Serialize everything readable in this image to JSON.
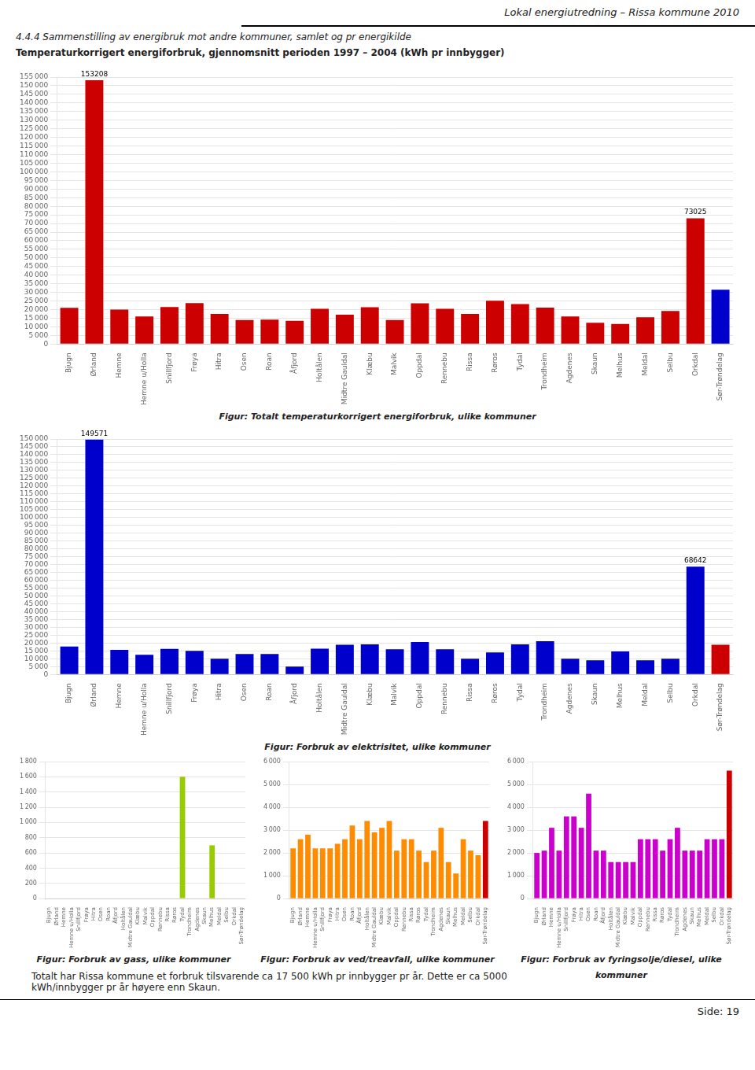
{
  "header": "Lokal energiutredning – Rissa kommune 2010",
  "section_title": "4.4.4   Sammenstilling av energibruk mot andre kommuner, samlet og pr energikilde",
  "subtitle": "Temperaturkorrigert energiforbruk, gjennomsnitt perioden 1997 – 2004 (kWh pr innbygger)",
  "text": [
    "Totalt har Rissa kommune et forbruk tilsvarende ca 17 500 kWh pr innbygger pr år. Dette er ca 5000",
    "kWh/innbygger pr år høyere enn Skaun."
  ],
  "footer": "Side: 19",
  "chart_data": [
    {
      "type": "bar",
      "title": "Figur: Totalt temperaturkorrigert energiforbruk, ulike kommuner",
      "categories": [
        "Bjugn",
        "Ørland",
        "Hemne",
        "Hemne u/Holla",
        "Snillfjord",
        "Frøya",
        "Hitra",
        "Osen",
        "Roan",
        "Åfjord",
        "Holtålen",
        "Midtre Gauldal",
        "Klæbu",
        "Malvik",
        "Oppdal",
        "Rennebu",
        "Rissa",
        "Røros",
        "Tydal",
        "Trondheim",
        "Agdenes",
        "Skaun",
        "Melhus",
        "Meldal",
        "Selbu",
        "Orkdal",
        "Sør-Trøndelag"
      ],
      "values": [
        21000,
        153208,
        20000,
        16000,
        21500,
        23800,
        17500,
        14000,
        14200,
        13500,
        20500,
        17000,
        21400,
        14000,
        23700,
        20500,
        17500,
        25200,
        23200,
        21200,
        16000,
        12400,
        11700,
        15500,
        19200,
        73025,
        31500
      ],
      "colors": [
        "#CC0000",
        "#CC0000",
        "#CC0000",
        "#CC0000",
        "#CC0000",
        "#CC0000",
        "#CC0000",
        "#CC0000",
        "#CC0000",
        "#CC0000",
        "#CC0000",
        "#CC0000",
        "#CC0000",
        "#CC0000",
        "#CC0000",
        "#CC0000",
        "#CC0000",
        "#CC0000",
        "#CC0000",
        "#CC0000",
        "#CC0000",
        "#CC0000",
        "#CC0000",
        "#CC0000",
        "#CC0000",
        "#CC0000",
        "#0000CC"
      ],
      "ylim": [
        0,
        155000
      ],
      "yticks": [
        0,
        {
          "value": 5000,
          "label": "5 000"
        },
        {
          "value": 10000,
          "label": "10 000"
        },
        {
          "value": 15000,
          "label": "15 000"
        },
        {
          "value": 20000,
          "label": "20 000"
        },
        {
          "value": 25000,
          "label": "25 000"
        },
        {
          "value": 30000,
          "label": "30 000"
        },
        {
          "value": 35000,
          "label": "35 000"
        },
        {
          "value": 40000,
          "label": "40 000"
        },
        {
          "value": 45000,
          "label": "45 000"
        },
        {
          "value": 50000,
          "label": "50 000"
        },
        {
          "value": 55000,
          "label": "55 000"
        },
        {
          "value": 60000,
          "label": "60 000"
        },
        {
          "value": 65000,
          "label": "65 000"
        },
        {
          "value": 70000,
          "label": "70 000"
        },
        {
          "value": 75000,
          "label": "75 000"
        },
        {
          "value": 80000,
          "label": "80 000"
        },
        {
          "value": 85000,
          "label": "85 000"
        },
        {
          "value": 90000,
          "label": "90 000"
        },
        {
          "value": 95000,
          "label": "95 000"
        },
        {
          "value": 100000,
          "label": "100 000"
        },
        {
          "value": 105000,
          "label": "105 000"
        },
        {
          "value": 110000,
          "label": "110 000"
        },
        {
          "value": 115000,
          "label": "115 000"
        },
        {
          "value": 120000,
          "label": "120 000"
        },
        {
          "value": 125000,
          "label": "125 000"
        },
        {
          "value": 130000,
          "label": "130 000"
        },
        {
          "value": 135000,
          "label": "135 000"
        },
        {
          "value": 140000,
          "label": "140 000"
        },
        {
          "value": 145000,
          "label": "145 000"
        },
        {
          "value": 150000,
          "label": "150 000"
        },
        {
          "value": 155000,
          "label": "155 000"
        }
      ],
      "grid": true,
      "annotations": [
        {
          "category": "Ørland",
          "text": "153208"
        },
        {
          "category": "Orkdal",
          "text": "73025"
        }
      ]
    },
    {
      "type": "bar",
      "title": "Figur: Forbruk av elektrisitet, ulike kommuner",
      "categories": [
        "Bjugn",
        "Ørland",
        "Hemne",
        "Hemne u/Holla",
        "Snillfjord",
        "Frøya",
        "Hitra",
        "Osen",
        "Roan",
        "Åfjord",
        "Holtålen",
        "Midtre Gauldal",
        "Klæbu",
        "Malvik",
        "Oppdal",
        "Rennebu",
        "Rissa",
        "Røros",
        "Tydal",
        "Trondheim",
        "Agdenes",
        "Skaun",
        "Melhus",
        "Meldal",
        "Selbu",
        "Orkdal",
        "Sør-Trøndelag"
      ],
      "values": [
        17800,
        149571,
        15700,
        12500,
        16300,
        15000,
        10000,
        13000,
        13000,
        5000,
        16400,
        19000,
        19200,
        16000,
        20700,
        16000,
        10000,
        14000,
        19200,
        21200,
        10000,
        9000,
        14700,
        9000,
        10000,
        68642,
        19000
      ],
      "colors": [
        "#0000CC",
        "#0000CC",
        "#0000CC",
        "#0000CC",
        "#0000CC",
        "#0000CC",
        "#0000CC",
        "#0000CC",
        "#0000CC",
        "#0000CC",
        "#0000CC",
        "#0000CC",
        "#0000CC",
        "#0000CC",
        "#0000CC",
        "#0000CC",
        "#0000CC",
        "#0000CC",
        "#0000CC",
        "#0000CC",
        "#0000CC",
        "#0000CC",
        "#0000CC",
        "#0000CC",
        "#0000CC",
        "#0000CC",
        "#CC0000"
      ],
      "ylim": [
        0,
        150000
      ],
      "yticks": [
        0,
        {
          "value": 5000,
          "label": "5 000"
        },
        {
          "value": 10000,
          "label": "10 000"
        },
        {
          "value": 15000,
          "label": "15 000"
        },
        {
          "value": 20000,
          "label": "20 000"
        },
        {
          "value": 25000,
          "label": "25 000"
        },
        {
          "value": 30000,
          "label": "30 000"
        },
        {
          "value": 35000,
          "label": "35 000"
        },
        {
          "value": 40000,
          "label": "40 000"
        },
        {
          "value": 45000,
          "label": "45 000"
        },
        {
          "value": 50000,
          "label": "50 000"
        },
        {
          "value": 55000,
          "label": "55 000"
        },
        {
          "value": 60000,
          "label": "60 000"
        },
        {
          "value": 65000,
          "label": "65 000"
        },
        {
          "value": 70000,
          "label": "70 000"
        },
        {
          "value": 75000,
          "label": "75 000"
        },
        {
          "value": 80000,
          "label": "80 000"
        },
        {
          "value": 85000,
          "label": "85 000"
        },
        {
          "value": 90000,
          "label": "90 000"
        },
        {
          "value": 95000,
          "label": "95 000"
        },
        {
          "value": 100000,
          "label": "100 000"
        },
        {
          "value": 105000,
          "label": "105 000"
        },
        {
          "value": 110000,
          "label": "110 000"
        },
        {
          "value": 115000,
          "label": "115 000"
        },
        {
          "value": 120000,
          "label": "120 000"
        },
        {
          "value": 125000,
          "label": "125 000"
        },
        {
          "value": 130000,
          "label": "130 000"
        },
        {
          "value": 135000,
          "label": "135 000"
        },
        {
          "value": 140000,
          "label": "140 000"
        },
        {
          "value": 145000,
          "label": "145 000"
        },
        {
          "value": 150000,
          "label": "150 000"
        }
      ],
      "grid": true,
      "annotations": [
        {
          "category": "Ørland",
          "text": "149571"
        },
        {
          "category": "Orkdal",
          "text": "68642"
        }
      ]
    },
    {
      "type": "bar",
      "title": "Figur: Forbruk av gass, ulike kommuner",
      "categories": [
        "Bjugn",
        "Ørland",
        "Hemne",
        "Hemne u/Holla",
        "Snillfjord",
        "Frøya",
        "Hitra",
        "Osen",
        "Roan",
        "Åfjord",
        "Holtålen",
        "Midtre Gauldal",
        "Klæbu",
        "Malvik",
        "Oppdal",
        "Rennebu",
        "Rissa",
        "Røros",
        "Tydal",
        "Trondheim",
        "Agdenes",
        "Skaun",
        "Melhus",
        "Meldal",
        "Selbu",
        "Orkdal",
        "Sør-Trøndelag"
      ],
      "values": [
        0,
        0,
        0,
        0,
        0,
        0,
        0,
        0,
        0,
        0,
        0,
        0,
        0,
        0,
        0,
        0,
        0,
        0,
        1600,
        0,
        0,
        0,
        700,
        0,
        0,
        0,
        0
      ],
      "colors": [
        "#99CC00",
        "#99CC00",
        "#99CC00",
        "#99CC00",
        "#99CC00",
        "#99CC00",
        "#99CC00",
        "#99CC00",
        "#99CC00",
        "#99CC00",
        "#99CC00",
        "#99CC00",
        "#99CC00",
        "#99CC00",
        "#99CC00",
        "#99CC00",
        "#99CC00",
        "#99CC00",
        "#99CC00",
        "#99CC00",
        "#99CC00",
        "#99CC00",
        "#99CC00",
        "#99CC00",
        "#99CC00",
        "#99CC00",
        "#CC0000"
      ],
      "ylim": [
        0,
        1800
      ],
      "yticks": [
        0,
        200,
        400,
        600,
        800,
        {
          "value": 1000,
          "label": "1 000"
        },
        {
          "value": 1200,
          "label": "1 200"
        },
        {
          "value": 1400,
          "label": "1 400"
        },
        {
          "value": 1600,
          "label": "1 600"
        },
        {
          "value": 1800,
          "label": "1 800"
        }
      ],
      "grid": true
    },
    {
      "type": "bar",
      "title": "Figur: Forbruk av ved/treavfall, ulike kommuner",
      "categories": [
        "Bjugn",
        "Ørland",
        "Hemne",
        "Hemne u/Holla",
        "Snillfjord",
        "Frøya",
        "Hitra",
        "Osen",
        "Roan",
        "Åfjord",
        "Holtålen",
        "Midtre Gauldal",
        "Klæbu",
        "Malvik",
        "Oppdal",
        "Rennebu",
        "Rissa",
        "Røros",
        "Tydal",
        "Trondheim",
        "Agdenes",
        "Skaun",
        "Melhus",
        "Meldal",
        "Selbu",
        "Orkdal",
        "Sør-Trøndelag"
      ],
      "values": [
        2200,
        2600,
        2800,
        2200,
        2200,
        2200,
        2400,
        2600,
        3200,
        2600,
        3400,
        2900,
        3100,
        3400,
        2100,
        2600,
        2600,
        2100,
        1600,
        2100,
        3100,
        1600,
        1100,
        2600,
        2100,
        1900,
        3400
      ],
      "colors": [
        "#FF8C00",
        "#FF8C00",
        "#FF8C00",
        "#FF8C00",
        "#FF8C00",
        "#FF8C00",
        "#FF8C00",
        "#FF8C00",
        "#FF8C00",
        "#FF8C00",
        "#FF8C00",
        "#FF8C00",
        "#FF8C00",
        "#FF8C00",
        "#FF8C00",
        "#FF8C00",
        "#FF8C00",
        "#FF8C00",
        "#FF8C00",
        "#FF8C00",
        "#FF8C00",
        "#FF8C00",
        "#FF8C00",
        "#FF8C00",
        "#FF8C00",
        "#FF8C00",
        "#CC0000"
      ],
      "ylim": [
        0,
        6000
      ],
      "yticks": [
        0,
        {
          "value": 1000,
          "label": "1 000"
        },
        {
          "value": 2000,
          "label": "2 000"
        },
        {
          "value": 3000,
          "label": "3 000"
        },
        {
          "value": 4000,
          "label": "4 000"
        },
        {
          "value": 5000,
          "label": "5 000"
        },
        {
          "value": 6000,
          "label": "6 000"
        }
      ],
      "grid": true
    },
    {
      "type": "bar",
      "title": "Figur: Forbruk av fyringsolje/diesel, ulike kommuner",
      "categories": [
        "Bjugn",
        "Ørland",
        "Hemne",
        "Hemne u/Holla",
        "Snillfjord",
        "Frøya",
        "Hitra",
        "Osen",
        "Roan",
        "Åfjord",
        "Holtålen",
        "Midtre Gauldal",
        "Klæbu",
        "Malvik",
        "Oppdal",
        "Rennebu",
        "Rissa",
        "Røros",
        "Tydal",
        "Trondheim",
        "Agdenes",
        "Skaun",
        "Melhus",
        "Meldal",
        "Selbu",
        "Orkdal",
        "Sør-Trøndelag"
      ],
      "values": [
        2000,
        2100,
        3100,
        2100,
        3600,
        3600,
        3100,
        4600,
        2100,
        2100,
        1600,
        1600,
        1600,
        1600,
        2600,
        2600,
        2600,
        2100,
        2600,
        3100,
        2100,
        2100,
        2100,
        2600,
        2600,
        2600,
        5600
      ],
      "colors": [
        "#CC00CC",
        "#CC00CC",
        "#CC00CC",
        "#CC00CC",
        "#CC00CC",
        "#CC00CC",
        "#CC00CC",
        "#CC00CC",
        "#CC00CC",
        "#CC00CC",
        "#CC00CC",
        "#CC00CC",
        "#CC00CC",
        "#CC00CC",
        "#CC00CC",
        "#CC00CC",
        "#CC00CC",
        "#CC00CC",
        "#CC00CC",
        "#CC00CC",
        "#CC00CC",
        "#CC00CC",
        "#CC00CC",
        "#CC00CC",
        "#CC00CC",
        "#CC00CC",
        "#CC0000"
      ],
      "ylim": [
        0,
        6000
      ],
      "yticks": [
        0,
        {
          "value": 1000,
          "label": "1 000"
        },
        {
          "value": 2000,
          "label": "2 000"
        },
        {
          "value": 3000,
          "label": "3 000"
        },
        {
          "value": 4000,
          "label": "4 000"
        },
        {
          "value": 5000,
          "label": "5 000"
        },
        {
          "value": 6000,
          "label": "6 000"
        }
      ],
      "grid": true
    }
  ]
}
